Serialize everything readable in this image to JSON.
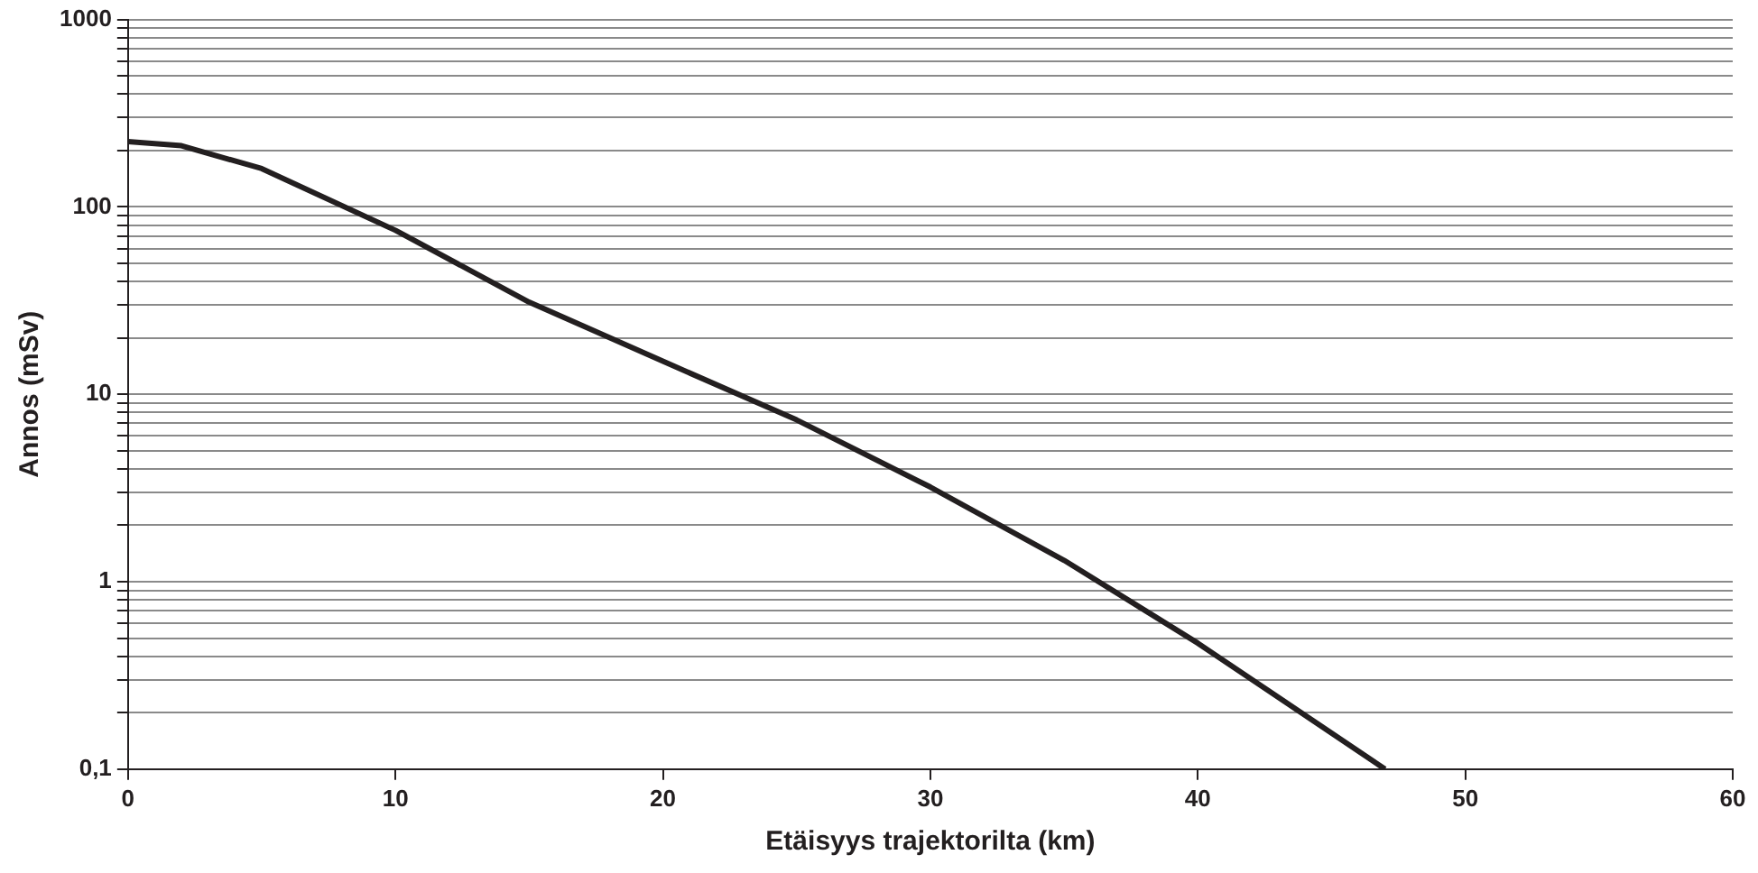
{
  "chart_data": {
    "type": "line",
    "xlabel": "Etäisyys trajektorilta (km)",
    "ylabel": "Annos (mSv)",
    "x": [
      0,
      2,
      5,
      10,
      15,
      20,
      25,
      30,
      35,
      40,
      47
    ],
    "series": [
      {
        "color": "#231f20",
        "values": [
          223,
          212,
          160,
          75,
          31,
          15,
          7.3,
          3.2,
          1.3,
          0.47,
          0.1
        ]
      }
    ],
    "xlim": [
      0,
      60
    ],
    "xticks": [
      0,
      10,
      20,
      30,
      40,
      50,
      60
    ],
    "ylim": [
      0.1,
      1000
    ],
    "log": true,
    "grid": "y",
    "marker": "none",
    "line_style": "solid",
    "yticks": [
      {
        "value": 0.1,
        "label": "0,1"
      },
      {
        "value": 0.2,
        "label": null
      },
      {
        "value": 0.3,
        "label": null
      },
      {
        "value": 0.4,
        "label": null
      },
      {
        "value": 0.5,
        "label": null
      },
      {
        "value": 0.6,
        "label": null
      },
      {
        "value": 0.7,
        "label": null
      },
      {
        "value": 0.8,
        "label": null
      },
      {
        "value": 0.9,
        "label": null
      },
      1,
      {
        "value": 2,
        "label": null
      },
      {
        "value": 3,
        "label": null
      },
      {
        "value": 4,
        "label": null
      },
      {
        "value": 5,
        "label": null
      },
      {
        "value": 6,
        "label": null
      },
      {
        "value": 7,
        "label": null
      },
      {
        "value": 8,
        "label": null
      },
      {
        "value": 9,
        "label": null
      },
      10,
      {
        "value": 20,
        "label": null
      },
      {
        "value": 30,
        "label": null
      },
      {
        "value": 40,
        "label": null
      },
      {
        "value": 50,
        "label": null
      },
      {
        "value": 60,
        "label": null
      },
      {
        "value": 70,
        "label": null
      },
      {
        "value": 80,
        "label": null
      },
      {
        "value": 90,
        "label": null
      },
      100,
      {
        "value": 200,
        "label": null
      },
      {
        "value": 300,
        "label": null
      },
      {
        "value": 400,
        "label": null
      },
      {
        "value": 500,
        "label": null
      },
      {
        "value": 600,
        "label": null
      },
      {
        "value": 700,
        "label": null
      },
      {
        "value": 800,
        "label": null
      },
      {
        "value": 900,
        "label": null
      },
      1000
    ]
  }
}
